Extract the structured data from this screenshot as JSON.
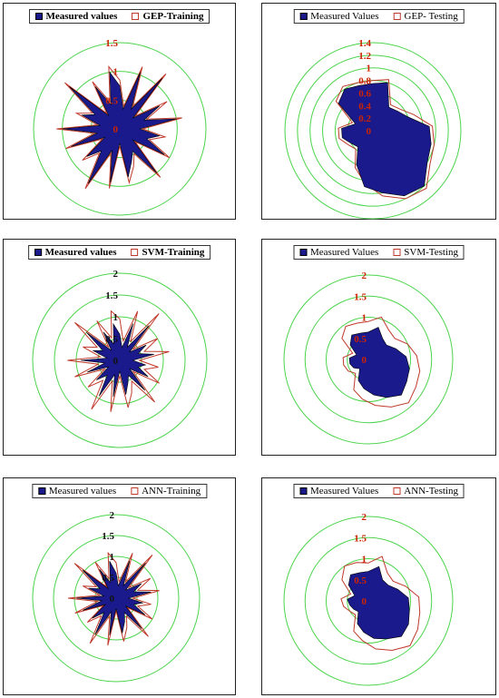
{
  "colors": {
    "measured": "#1a1a8c",
    "predicted": "#c0392b",
    "grid": "#4cd44c",
    "tick": "#cc2200"
  },
  "chart_data": [
    {
      "type": "radar",
      "id": "gep-training",
      "legend": [
        "Measured values",
        "GEP-Training"
      ],
      "legend_bold": true,
      "ticks": [
        "0",
        "0.5",
        "1",
        "1.5"
      ],
      "rmax": 1.5,
      "tick_color": "tick",
      "series": [
        {
          "name": "Measured values",
          "values": [
            0.75,
            0.35,
            1.05,
            0.4,
            1.15,
            0.3,
            0.8,
            0.45,
            1.0,
            0.35,
            0.7,
            0.5,
            0.9,
            0.3,
            1.0,
            0.45,
            0.6,
            0.85,
            0.25,
            0.95,
            0.4,
            1.1,
            0.5,
            0.75,
            0.3,
            0.9,
            0.4,
            1.0,
            0.35,
            0.7,
            0.5,
            1.15,
            0.3,
            0.85,
            0.45,
            1.0
          ]
        },
        {
          "name": "GEP-Training",
          "values": [
            0.85,
            0.4,
            1.15,
            0.45,
            1.25,
            0.35,
            0.95,
            0.5,
            1.1,
            0.4,
            0.8,
            0.55,
            1.0,
            0.35,
            1.1,
            0.5,
            0.7,
            0.95,
            0.3,
            1.05,
            0.45,
            1.2,
            0.55,
            0.85,
            0.35,
            1.0,
            0.45,
            1.1,
            0.4,
            0.8,
            0.55,
            1.25,
            0.35,
            0.95,
            0.5,
            1.1
          ]
        }
      ]
    },
    {
      "type": "radar",
      "id": "gep-testing",
      "legend": [
        "Measured Values",
        "GEP- Testing"
      ],
      "legend_bold": false,
      "ticks": [
        "0",
        "0.2",
        "0.4",
        "0.6",
        "0.8",
        "1",
        "1.2",
        "1.4"
      ],
      "rmax": 1.4,
      "tick_color": "tick",
      "series": [
        {
          "name": "Measured Values",
          "values": [
            0.75,
            0.8,
            0.45,
            0.5,
            0.6,
            0.9,
            0.95,
            1.0,
            1.2,
            1.15,
            1.0,
            0.9,
            0.6,
            0.35,
            0.4,
            0.5,
            0.5,
            0.3,
            0.7,
            0.8,
            0.75
          ]
        },
        {
          "name": "GEP- Testing",
          "values": [
            0.8,
            0.85,
            0.5,
            0.55,
            0.7,
            0.95,
            1.0,
            1.05,
            1.25,
            1.2,
            1.05,
            0.85,
            0.65,
            0.4,
            0.45,
            0.55,
            0.55,
            0.35,
            0.75,
            0.85,
            0.8
          ]
        }
      ]
    },
    {
      "type": "radar",
      "id": "svm-training",
      "legend": [
        "Measured values",
        "SVM-Training"
      ],
      "legend_bold": true,
      "ticks": [
        "0",
        "0.5",
        "1",
        "1.5",
        "2"
      ],
      "rmax": 2.0,
      "tick_color": "plain",
      "series": [
        {
          "name": "Measured values",
          "values": [
            0.6,
            0.3,
            0.9,
            0.35,
            1.05,
            0.3,
            0.7,
            0.45,
            0.8,
            0.3,
            0.6,
            0.45,
            0.75,
            0.3,
            0.9,
            0.4,
            0.55,
            0.8,
            0.25,
            0.85,
            0.35,
            0.95,
            0.45,
            0.7,
            0.3,
            0.8,
            0.35,
            0.9,
            0.3,
            0.65,
            0.45,
            1.0,
            0.3,
            0.75,
            0.4,
            0.85
          ]
        },
        {
          "name": "SVM-Training",
          "values": [
            0.95,
            0.45,
            1.2,
            0.5,
            1.4,
            0.4,
            1.0,
            0.6,
            1.15,
            0.45,
            0.9,
            0.6,
            1.05,
            0.4,
            1.25,
            0.55,
            0.8,
            1.1,
            0.35,
            1.2,
            0.5,
            1.3,
            0.6,
            0.95,
            0.4,
            1.1,
            0.5,
            1.2,
            0.45,
            0.9,
            0.6,
            1.35,
            0.4,
            1.05,
            0.55,
            1.15
          ]
        }
      ]
    },
    {
      "type": "radar",
      "id": "svm-testing",
      "legend": [
        "Measured Values",
        "SVM-Testing"
      ],
      "legend_bold": false,
      "ticks": [
        "0",
        "0.5",
        "1",
        "1.5",
        "2"
      ],
      "rmax": 2.0,
      "tick_color": "tick",
      "series": [
        {
          "name": "Measured Values",
          "values": [
            0.65,
            0.8,
            0.6,
            0.55,
            0.7,
            0.9,
            1.0,
            1.05,
            1.15,
            1.0,
            0.85,
            0.7,
            0.55,
            0.3,
            0.4,
            0.45,
            0.45,
            0.3,
            0.55,
            0.7,
            0.65
          ]
        },
        {
          "name": "SVM-Testing",
          "values": [
            0.9,
            1.05,
            0.85,
            0.8,
            1.0,
            1.15,
            1.25,
            1.3,
            1.4,
            1.25,
            1.1,
            0.95,
            0.8,
            0.45,
            0.55,
            0.6,
            0.6,
            0.4,
            0.8,
            0.95,
            0.9
          ]
        }
      ]
    },
    {
      "type": "radar",
      "id": "ann-training",
      "legend": [
        "Measured values",
        "ANN-Training"
      ],
      "legend_bold": false,
      "ticks": [
        "0",
        "0.5",
        "1",
        "1.5",
        "2"
      ],
      "rmax": 2.0,
      "tick_color": "plain",
      "series": [
        {
          "name": "Measured values",
          "values": [
            0.6,
            0.3,
            0.95,
            0.35,
            1.1,
            0.3,
            0.7,
            0.45,
            0.85,
            0.3,
            0.65,
            0.45,
            0.8,
            0.3,
            0.95,
            0.4,
            0.6,
            0.85,
            0.25,
            0.9,
            0.35,
            1.0,
            0.45,
            0.75,
            0.3,
            0.85,
            0.35,
            0.95,
            0.3,
            0.7,
            0.45,
            1.05,
            0.3,
            0.8,
            0.4,
            0.9
          ]
        },
        {
          "name": "ANN-Training",
          "values": [
            0.85,
            0.4,
            1.15,
            0.45,
            1.35,
            0.4,
            0.95,
            0.55,
            1.05,
            0.4,
            0.85,
            0.55,
            1.0,
            0.35,
            1.2,
            0.5,
            0.75,
            1.05,
            0.3,
            1.15,
            0.45,
            1.25,
            0.55,
            0.9,
            0.35,
            1.05,
            0.45,
            1.15,
            0.4,
            0.85,
            0.55,
            1.3,
            0.35,
            1.0,
            0.5,
            1.1
          ]
        }
      ]
    },
    {
      "type": "radar",
      "id": "ann-testing",
      "legend": [
        "Measured Values",
        "ANN-Testing"
      ],
      "legend_bold": false,
      "ticks": [
        "0",
        "0.5",
        "1",
        "1.5",
        "2"
      ],
      "rmax": 2.0,
      "tick_color": "tick",
      "series": [
        {
          "name": "Measured Values",
          "values": [
            0.7,
            0.85,
            0.6,
            0.6,
            0.75,
            0.95,
            1.0,
            1.1,
            1.15,
            1.0,
            0.9,
            0.75,
            0.6,
            0.35,
            0.4,
            0.45,
            0.5,
            0.35,
            0.6,
            0.75,
            0.7
          ]
        },
        {
          "name": "ANN-Testing",
          "values": [
            0.9,
            1.1,
            0.8,
            0.75,
            0.95,
            1.2,
            1.25,
            1.35,
            1.45,
            1.3,
            1.15,
            0.95,
            0.8,
            0.45,
            0.5,
            0.6,
            0.65,
            0.45,
            0.8,
            1.0,
            0.95
          ]
        }
      ]
    }
  ]
}
